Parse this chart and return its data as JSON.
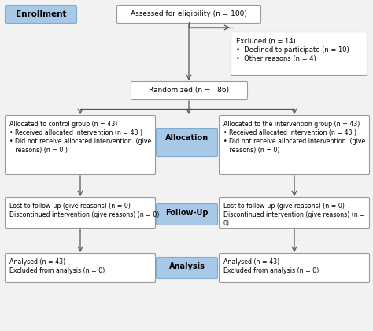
{
  "bg_color": "#f2f2f2",
  "box_border": "#999999",
  "box_border_dark": "#777777",
  "blue_fill": "#a8c8e8",
  "blue_border": "#7aaecc",
  "white_fill": "#ffffff",
  "enrollment_label": "Enrollment",
  "allocation_label": "Allocation",
  "followup_label": "Follow-Up",
  "analysis_label": "Analysis",
  "eligibility_text": "Assessed for eligibility (n = 100)",
  "excluded_text": "Excluded (n = 14)\n•  Declined to participate (n = 10)\n•  Other reasons (n = 4)",
  "randomized_text": "Randomized (n =   86)",
  "control_text": "Allocated to control group (n = 43)\n• Received allocated intervention (n = 43 )\n• Did not receive allocated intervention  (give\n   reasons) (n = 0 )",
  "intervention_text": "Allocated to the intervention group (n = 43)\n• Received allocated intervention (n = 43 )\n• Did not receive allocated intervention  (give\n   reasons) (n = 0)",
  "fu_left_text": "Lost to follow-up (give reasons) (n = 0)\nDiscontinued intervention (give reasons) (n = 0)",
  "fu_right_text": "Lost to follow-up (give reasons) (n = 0)\nDiscontinued intervention (give reasons) (n =\n0)",
  "analysis_left_text": "Analysed (n = 43)\nExcluded from analysis (n = 0)",
  "analysis_right_text": "Analysed (n = 43)\nExcluded from analysis (n = 0)"
}
